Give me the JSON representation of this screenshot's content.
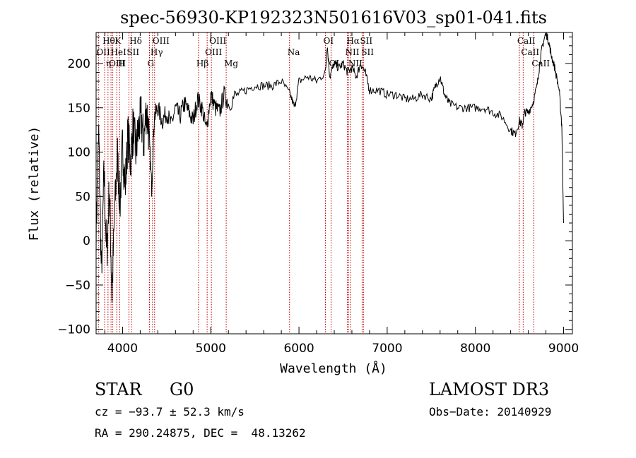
{
  "chart_data": {
    "type": "line",
    "title": "spec-56930-KP192323N501616V03_sp01-041.fits",
    "xlabel": "Wavelength (Å)",
    "ylabel": "Flux (relative)",
    "xlim": [
      3700,
      9100
    ],
    "ylim": [
      -105,
      235
    ],
    "x_ticks": [
      4000,
      5000,
      6000,
      7000,
      8000,
      9000
    ],
    "y_ticks": [
      -100,
      -50,
      0,
      50,
      100,
      150,
      200
    ],
    "series": [
      {
        "name": "flux",
        "x": [
          3700,
          3730,
          3760,
          3790,
          3820,
          3850,
          3880,
          3910,
          3940,
          3970,
          4000,
          4030,
          4060,
          4090,
          4120,
          4150,
          4180,
          4210,
          4240,
          4270,
          4300,
          4330,
          4360,
          4400,
          4450,
          4500,
          4550,
          4600,
          4650,
          4700,
          4750,
          4800,
          4850,
          4900,
          4950,
          5000,
          5050,
          5100,
          5150,
          5200,
          5300,
          5400,
          5500,
          5600,
          5700,
          5800,
          5900,
          5950,
          6000,
          6100,
          6200,
          6300,
          6320,
          6350,
          6400,
          6450,
          6500,
          6550,
          6600,
          6650,
          6700,
          6750,
          6800,
          6900,
          7000,
          7100,
          7200,
          7300,
          7400,
          7500,
          7550,
          7600,
          7650,
          7700,
          7800,
          7900,
          8000,
          8100,
          8200,
          8300,
          8400,
          8450,
          8500,
          8530,
          8560,
          8600,
          8650,
          8700,
          8730,
          8760,
          8800,
          8830,
          8860,
          8900,
          8950,
          8980,
          9000
        ],
        "y": [
          10,
          120,
          -40,
          80,
          -20,
          60,
          -60,
          30,
          100,
          40,
          110,
          60,
          120,
          90,
          130,
          100,
          125,
          140,
          110,
          150,
          120,
          60,
          140,
          150,
          135,
          145,
          130,
          150,
          140,
          155,
          145,
          135,
          160,
          150,
          125,
          165,
          150,
          145,
          165,
          155,
          165,
          170,
          175,
          175,
          175,
          180,
          165,
          150,
          180,
          185,
          180,
          190,
          220,
          185,
          200,
          195,
          200,
          190,
          195,
          185,
          200,
          190,
          170,
          170,
          165,
          165,
          160,
          160,
          165,
          160,
          175,
          185,
          165,
          155,
          150,
          150,
          150,
          150,
          145,
          140,
          125,
          120,
          135,
          130,
          145,
          145,
          155,
          175,
          200,
          220,
          235,
          225,
          210,
          195,
          170,
          130,
          20
        ]
      }
    ],
    "lines": [
      {
        "name": "Hθ",
        "x": 3797,
        "row": 1
      },
      {
        "name": "OII",
        "x": 3727,
        "row": 2
      },
      {
        "name": "OIII",
        "x": 3869,
        "row": 3
      },
      {
        "name": "K",
        "x": 3934,
        "row": 1
      },
      {
        "name": "HeI",
        "x": 3889,
        "row": 2
      },
      {
        "name": "η",
        "x": 3835,
        "row": 3
      },
      {
        "name": "H",
        "x": 3968,
        "row": 3
      },
      {
        "name": "Hδ",
        "x": 4102,
        "row": 1
      },
      {
        "name": "SII",
        "x": 4072,
        "row": 2
      },
      {
        "name": "OIII",
        "x": 4363,
        "row": 1
      },
      {
        "name": "Hγ",
        "x": 4340,
        "row": 2
      },
      {
        "name": "G",
        "x": 4305,
        "row": 3
      },
      {
        "name": "Hβ",
        "x": 4861,
        "row": 3
      },
      {
        "name": "OIII",
        "x": 5007,
        "row": 1
      },
      {
        "name": "OIII",
        "x": 4959,
        "row": 2
      },
      {
        "name": "Mg",
        "x": 5175,
        "row": 3
      },
      {
        "name": "Na",
        "x": 5893,
        "row": 2
      },
      {
        "name": "OI",
        "x": 6300,
        "row": 1
      },
      {
        "name": "OI",
        "x": 6364,
        "row": 3
      },
      {
        "name": "Hα",
        "x": 6563,
        "row": 1
      },
      {
        "name": "NII",
        "x": 6548,
        "row": 2
      },
      {
        "name": "NII",
        "x": 6583,
        "row": 3
      },
      {
        "name": "SII",
        "x": 6716,
        "row": 1
      },
      {
        "name": "SII",
        "x": 6731,
        "row": 2
      },
      {
        "name": "CaII",
        "x": 8498,
        "row": 1
      },
      {
        "name": "CaII",
        "x": 8542,
        "row": 2
      },
      {
        "name": "CaII",
        "x": 8662,
        "row": 3
      }
    ]
  },
  "info": {
    "object_class": "STAR",
    "subclass": "G0",
    "survey": "LAMOST DR3",
    "cz": "cz = −93.7 ± 52.3 km/s",
    "obs_date": "Obs−Date: 20140929",
    "coords": "RA = 290.24875, DEC =  48.13262"
  },
  "colors": {
    "axis": "#000000",
    "flux": "#000000",
    "line_marker": "#c00000"
  }
}
